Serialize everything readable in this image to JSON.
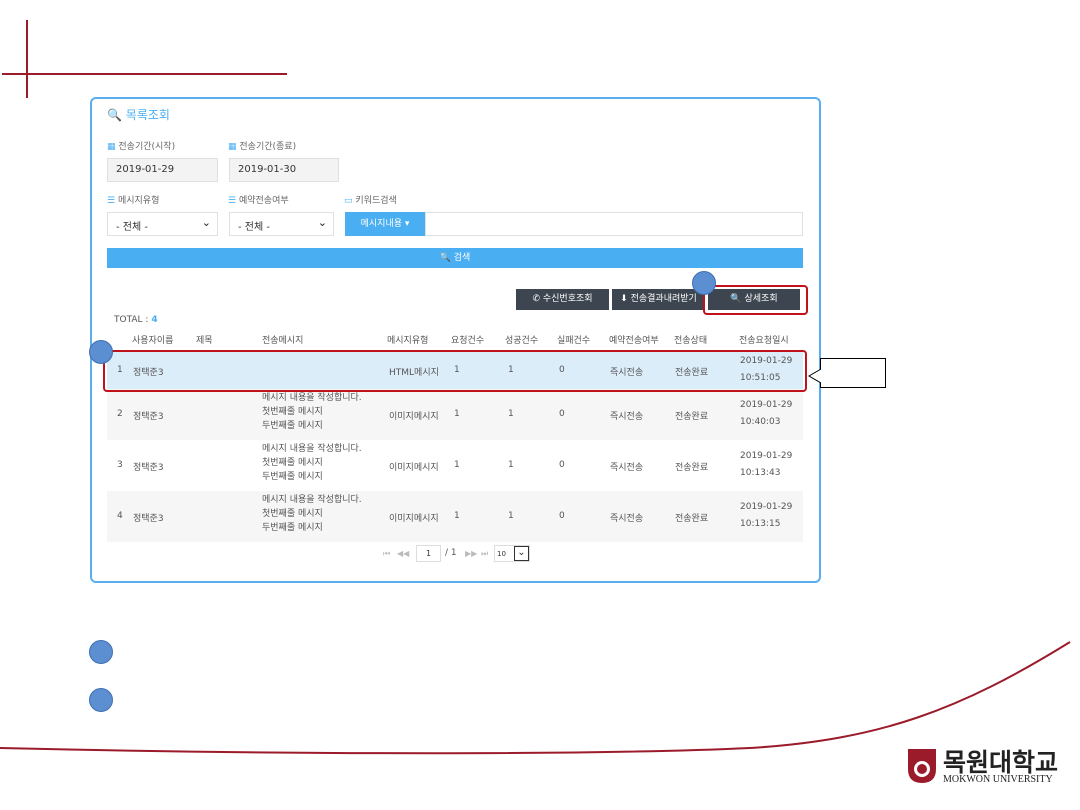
{
  "panel": {
    "title": "목록조회",
    "start_label": "전송기간(시작)",
    "start_value": "2019-01-29",
    "end_label": "전송기간(종료)",
    "end_value": "2019-01-30",
    "type_label": "메시지유형",
    "type_value": "- 전체 -",
    "reserve_label": "예약전송여부",
    "reserve_value": "- 전체 -",
    "keyword_label": "키워드검색",
    "keyword_dropdown": "메시지내용 ▾",
    "keyword_value": "",
    "search_button": "검색"
  },
  "toolbar": {
    "recipient_button": "수신번호조회",
    "download_button": "전송결과내려받기",
    "detail_button": "상세조회"
  },
  "total": {
    "label": "TOTAL :",
    "count": "4"
  },
  "table": {
    "headers": [
      "사용자이름",
      "제목",
      "전송메시지",
      "메시지유형",
      "요청건수",
      "성공건수",
      "실패건수",
      "예약전송여부",
      "전송상태",
      "전송요청일시"
    ],
    "rows": [
      {
        "no": "1",
        "user": "정택준3",
        "title": "",
        "msg1": "",
        "msg2": "",
        "msg3": "",
        "type": "HTML메시지",
        "req": "1",
        "ok": "1",
        "fail": "0",
        "reserve": "즉시전송",
        "status": "전송완료",
        "date": "2019-01-29",
        "time": "10:51:05"
      },
      {
        "no": "2",
        "user": "정택준3",
        "title": "",
        "msg1": "메시지 내용을 작성합니다.",
        "msg2": "첫번째줄 메시지",
        "msg3": "두번째줄 메시지",
        "type": "이미지메시지",
        "req": "1",
        "ok": "1",
        "fail": "0",
        "reserve": "즉시전송",
        "status": "전송완료",
        "date": "2019-01-29",
        "time": "10:40:03"
      },
      {
        "no": "3",
        "user": "정택준3",
        "title": "",
        "msg1": "메시지 내용을 작성합니다.",
        "msg2": "첫번째줄 메시지",
        "msg3": "두번째줄 메시지",
        "type": "이미지메시지",
        "req": "1",
        "ok": "1",
        "fail": "0",
        "reserve": "즉시전송",
        "status": "전송완료",
        "date": "2019-01-29",
        "time": "10:13:43"
      },
      {
        "no": "4",
        "user": "정택준3",
        "title": "",
        "msg1": "메시지 내용을 작성합니다.",
        "msg2": "첫번째줄 메시지",
        "msg3": "두번째줄 메시지",
        "type": "이미지메시지",
        "req": "1",
        "ok": "1",
        "fail": "0",
        "reserve": "즉시전송",
        "status": "전송완료",
        "date": "2019-01-29",
        "time": "10:13:15"
      }
    ]
  },
  "pagination": {
    "page": "1",
    "total": "/ 1",
    "page_size": "10"
  },
  "logo": {
    "korean": "목원대학교",
    "english": "MOKWON UNIVERSITY"
  },
  "colors": {
    "accent": "#4aaef2",
    "dark_button": "#3d4650",
    "highlight": "#c0121b",
    "marker": "#5b8fd1",
    "selected_row": "#dcedfa"
  }
}
